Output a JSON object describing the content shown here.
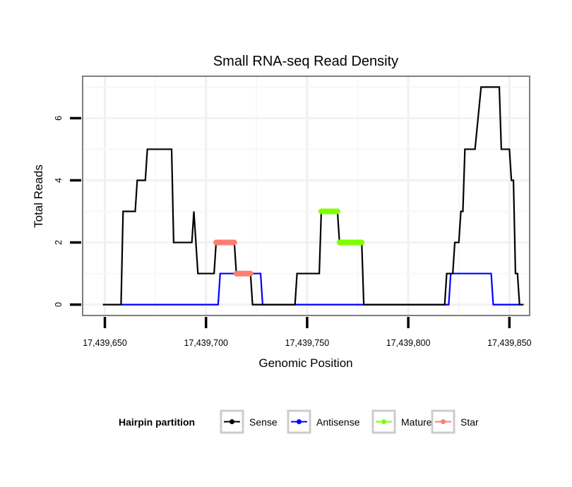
{
  "chart_data": {
    "type": "line",
    "title": "Small RNA-seq Read Density",
    "xlabel": "Genomic Position",
    "ylabel": "Total Reads",
    "xlim": [
      17439639,
      17439860
    ],
    "ylim": [
      -0.35,
      7.35
    ],
    "x_ticks": [
      17439650,
      17439700,
      17439750,
      17439800,
      17439850
    ],
    "x_tick_labels": [
      "17,439,650",
      "17,439,700",
      "17,439,750",
      "17,439,800",
      "17,439,850"
    ],
    "y_ticks": [
      0,
      2,
      4,
      6
    ],
    "y_tick_labels": [
      "0",
      "2",
      "4",
      "6"
    ],
    "grid": true,
    "legend": {
      "title": "Hairpin partition",
      "placement": "bottom",
      "entries": [
        {
          "label": "Sense",
          "color": "#000000"
        },
        {
          "label": "Antisense",
          "color": "#0000ff"
        },
        {
          "label": "Mature",
          "color": "#7fff00"
        },
        {
          "label": "Star",
          "color": "#fa8072"
        }
      ]
    },
    "series": [
      {
        "name": "Sense",
        "color": "#000000",
        "style": "line",
        "points": [
          [
            17439649,
            0
          ],
          [
            17439658,
            0
          ],
          [
            17439659,
            3
          ],
          [
            17439665,
            3
          ],
          [
            17439666,
            4
          ],
          [
            17439670,
            4
          ],
          [
            17439671,
            5
          ],
          [
            17439683,
            5
          ],
          [
            17439684,
            2
          ],
          [
            17439693,
            2
          ],
          [
            17439694,
            3
          ],
          [
            17439696,
            1
          ],
          [
            17439704,
            1
          ],
          [
            17439705,
            2
          ],
          [
            17439714,
            2
          ],
          [
            17439715,
            1
          ],
          [
            17439722,
            1
          ],
          [
            17439723,
            0
          ],
          [
            17439744,
            0
          ],
          [
            17439745,
            1
          ],
          [
            17439756,
            1
          ],
          [
            17439757,
            3
          ],
          [
            17439765,
            3
          ],
          [
            17439766,
            2
          ],
          [
            17439777,
            2
          ],
          [
            17439778,
            0
          ],
          [
            17439818,
            0
          ],
          [
            17439819,
            1
          ],
          [
            17439822,
            1
          ],
          [
            17439823,
            2
          ],
          [
            17439825,
            2
          ],
          [
            17439826,
            3
          ],
          [
            17439827,
            3
          ],
          [
            17439828,
            5
          ],
          [
            17439833,
            5
          ],
          [
            17439836,
            7
          ],
          [
            17439845,
            7
          ],
          [
            17439846,
            5
          ],
          [
            17439850,
            5
          ],
          [
            17439851,
            4
          ],
          [
            17439852,
            4
          ],
          [
            17439853,
            1
          ],
          [
            17439854,
            1
          ],
          [
            17439855,
            0
          ],
          [
            17439857,
            0
          ]
        ]
      },
      {
        "name": "Antisense",
        "color": "#0000ff",
        "style": "line",
        "points": [
          [
            17439658,
            0
          ],
          [
            17439706,
            0
          ],
          [
            17439707,
            1
          ],
          [
            17439727,
            1
          ],
          [
            17439728,
            0
          ],
          [
            17439744,
            0
          ],
          [
            17439778,
            0
          ],
          [
            17439820,
            0
          ],
          [
            17439821,
            1
          ],
          [
            17439841,
            1
          ],
          [
            17439842,
            0
          ],
          [
            17439855,
            0
          ]
        ]
      },
      {
        "name": "Mature",
        "color": "#7fff00",
        "style": "point-line",
        "segments": [
          {
            "x": [
              17439757,
              17439765
            ],
            "y": 3
          },
          {
            "x": [
              17439766,
              17439777
            ],
            "y": 2
          }
        ]
      },
      {
        "name": "Star",
        "color": "#fa8072",
        "style": "point-line",
        "segments": [
          {
            "x": [
              17439705,
              17439714
            ],
            "y": 2
          },
          {
            "x": [
              17439715,
              17439722
            ],
            "y": 1
          }
        ]
      }
    ]
  }
}
